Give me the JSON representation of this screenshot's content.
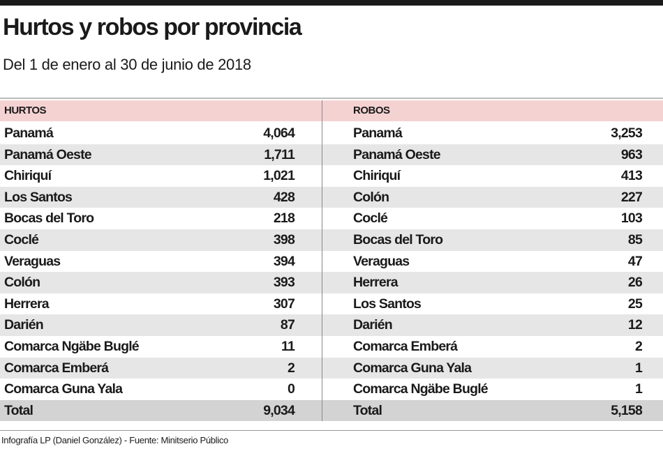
{
  "title": "Hurtos y robos por provincia",
  "subtitle": "Del 1 de enero al 30 de junio de 2018",
  "tables": [
    {
      "header": "HURTOS",
      "rows": [
        [
          "Panamá",
          "4,064"
        ],
        [
          "Panamá Oeste",
          "1,711"
        ],
        [
          "Chiriquí",
          "1,021"
        ],
        [
          "Los Santos",
          "428"
        ],
        [
          "Bocas del Toro",
          "218"
        ],
        [
          "Coclé",
          "398"
        ],
        [
          "Veraguas",
          "394"
        ],
        [
          "Colón",
          "393"
        ],
        [
          "Herrera",
          "307"
        ],
        [
          "Darién",
          "87"
        ],
        [
          "Comarca Ngäbe Buglé",
          "11"
        ],
        [
          "Comarca Emberá",
          "2"
        ],
        [
          "Comarca Guna Yala",
          "0"
        ]
      ],
      "total": [
        "Total",
        "9,034"
      ]
    },
    {
      "header": "ROBOS",
      "rows": [
        [
          "Panamá",
          "3,253"
        ],
        [
          "Panamá Oeste",
          "963"
        ],
        [
          "Chiriquí",
          "413"
        ],
        [
          "Colón",
          "227"
        ],
        [
          "Coclé",
          "103"
        ],
        [
          "Bocas del Toro",
          "85"
        ],
        [
          "Veraguas",
          "47"
        ],
        [
          "Herrera",
          "26"
        ],
        [
          "Los Santos",
          "25"
        ],
        [
          "Darién",
          "12"
        ],
        [
          "Comarca Emberá",
          "2"
        ],
        [
          "Comarca Guna Yala",
          "1"
        ],
        [
          "Comarca Ngäbe Buglé",
          "1"
        ]
      ],
      "total": [
        "Total",
        "5,158"
      ]
    }
  ],
  "footer": "Infografía LP (Daniel González) - Fuente: Minitserio Público"
}
